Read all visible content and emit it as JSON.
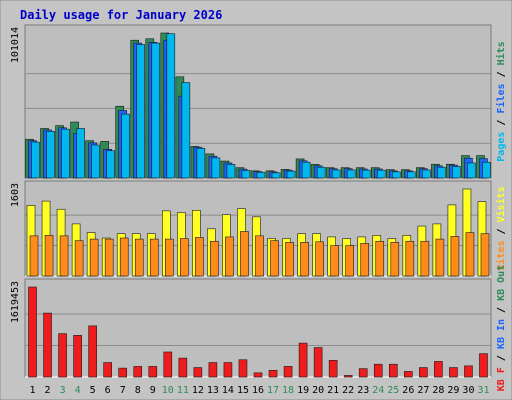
{
  "title": "Daily usage for January 2026",
  "colors": {
    "frame": "#c4c4c4",
    "plot_bg": "#bebebe",
    "gridline": "#8c8c8c",
    "title_text": "#0000cc",
    "hits": "#2e8b57",
    "files": "#1a64ff",
    "pages": "#00b8ee",
    "visits": "#ffff22",
    "sites": "#ff8c1a",
    "kb_in": "#1a64ff",
    "kb_out": "#2e8b57",
    "kb_f": "#ee1c1c",
    "weekend_label": "#2e8b57",
    "weekday_label": "#000000"
  },
  "chart_data": [
    {
      "type": "bar",
      "panel": "hits_files_pages",
      "ymax_label": "101014",
      "ymax": 101014,
      "legend": [
        {
          "text": "Pages",
          "color_key": "pages"
        },
        {
          "text": "Files",
          "color_key": "files"
        },
        {
          "text": "Hits",
          "color_key": "hits"
        }
      ],
      "separators": [
        " / ",
        " / "
      ],
      "series": [
        {
          "name": "Hits",
          "color_key": "hits",
          "values": [
            27000,
            34500,
            36500,
            39000,
            26000,
            25500,
            50000,
            96000,
            97000,
            101014,
            70500,
            22000,
            16800,
            11800,
            7200,
            5000,
            5000,
            6000,
            13300,
            9500,
            7200,
            7200,
            7200,
            7200,
            5800,
            5800,
            7200,
            9600,
            9600,
            15600,
            15600
          ]
        },
        {
          "name": "Files",
          "color_key": "files",
          "values": [
            26000,
            33500,
            35000,
            31000,
            24500,
            20000,
            47000,
            94000,
            94500,
            96000,
            57000,
            21500,
            15200,
            10500,
            6200,
            4500,
            4300,
            5500,
            12000,
            8500,
            6500,
            6500,
            6300,
            6300,
            5000,
            5000,
            6500,
            8500,
            9000,
            13800,
            13500
          ]
        },
        {
          "name": "Pages",
          "color_key": "pages",
          "values": [
            25000,
            32500,
            34000,
            34500,
            23000,
            19000,
            44500,
            93000,
            94000,
            100500,
            66500,
            20700,
            14000,
            9500,
            5300,
            4000,
            3600,
            4800,
            11000,
            7500,
            5600,
            5600,
            5500,
            5500,
            4300,
            4300,
            5600,
            7500,
            8000,
            10500,
            11000
          ]
        }
      ]
    },
    {
      "type": "bar",
      "panel": "visits_sites",
      "ymax_label": "1603",
      "ymax": 1603,
      "legend": [
        {
          "text": "Sites",
          "color_key": "sites"
        },
        {
          "text": "Visits",
          "color_key": "visits"
        }
      ],
      "separators": [
        " / "
      ],
      "series": [
        {
          "name": "Visits",
          "color_key": "visits",
          "values": [
            1300,
            1380,
            1230,
            960,
            800,
            700,
            780,
            780,
            780,
            1200,
            1170,
            1210,
            870,
            1130,
            1240,
            1090,
            690,
            690,
            780,
            780,
            720,
            690,
            720,
            750,
            690,
            750,
            920,
            960,
            1310,
            1603,
            1370
          ]
        },
        {
          "name": "Sites",
          "color_key": "sites",
          "values": [
            740,
            750,
            740,
            650,
            680,
            680,
            700,
            680,
            680,
            680,
            690,
            710,
            640,
            720,
            820,
            740,
            650,
            620,
            620,
            630,
            560,
            560,
            600,
            640,
            620,
            640,
            640,
            680,
            730,
            800,
            780
          ]
        }
      ]
    },
    {
      "type": "bar",
      "panel": "kbf_kbin_kbout",
      "ymax_label": "1619453",
      "ymax": 1619453,
      "legend": [
        {
          "text": "KB F",
          "color_key": "kb_f"
        },
        {
          "text": "KB In",
          "color_key": "kb_in"
        },
        {
          "text": "KB Out",
          "color_key": "kb_out"
        }
      ],
      "separators": [
        " / ",
        " / "
      ],
      "series": [
        {
          "name": "KB F",
          "color_key": "kb_f",
          "values": [
            1619453,
            1150000,
            780000,
            750000,
            920000,
            260000,
            160000,
            190000,
            190000,
            450000,
            340000,
            170000,
            260000,
            260000,
            310000,
            75000,
            120000,
            190000,
            610000,
            530000,
            300000,
            28000,
            150000,
            230000,
            230000,
            100000,
            170000,
            280000,
            170000,
            200000,
            420000
          ]
        }
      ]
    }
  ],
  "x_labels": [
    "1",
    "2",
    "3",
    "4",
    "5",
    "6",
    "7",
    "8",
    "9",
    "10",
    "11",
    "12",
    "13",
    "14",
    "15",
    "16",
    "17",
    "18",
    "19",
    "20",
    "21",
    "22",
    "23",
    "24",
    "25",
    "26",
    "27",
    "28",
    "29",
    "30",
    "31"
  ],
  "weekend_days": [
    3,
    4,
    10,
    11,
    17,
    18,
    24,
    25,
    31
  ]
}
